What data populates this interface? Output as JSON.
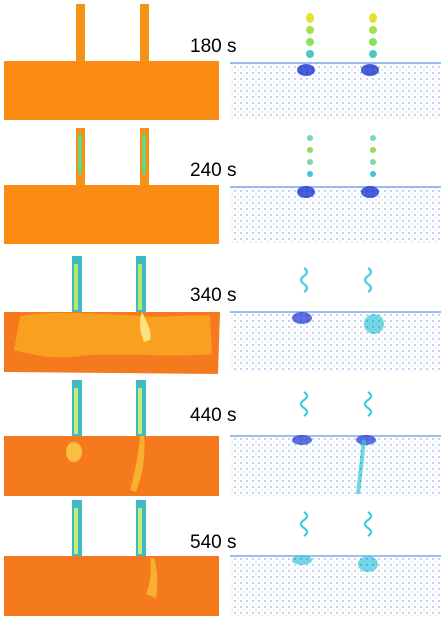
{
  "frames": [
    {
      "time": "180 s"
    },
    {
      "time": "240 s"
    },
    {
      "time": "340 s"
    },
    {
      "time": "440 s"
    },
    {
      "time": "540 s"
    }
  ],
  "colors": {
    "bath_orange": "#fa8c14",
    "bath_dark": "#f57a1e",
    "vector_blue": "#1a2fd0",
    "vector_cyan": "#35c8d8"
  }
}
